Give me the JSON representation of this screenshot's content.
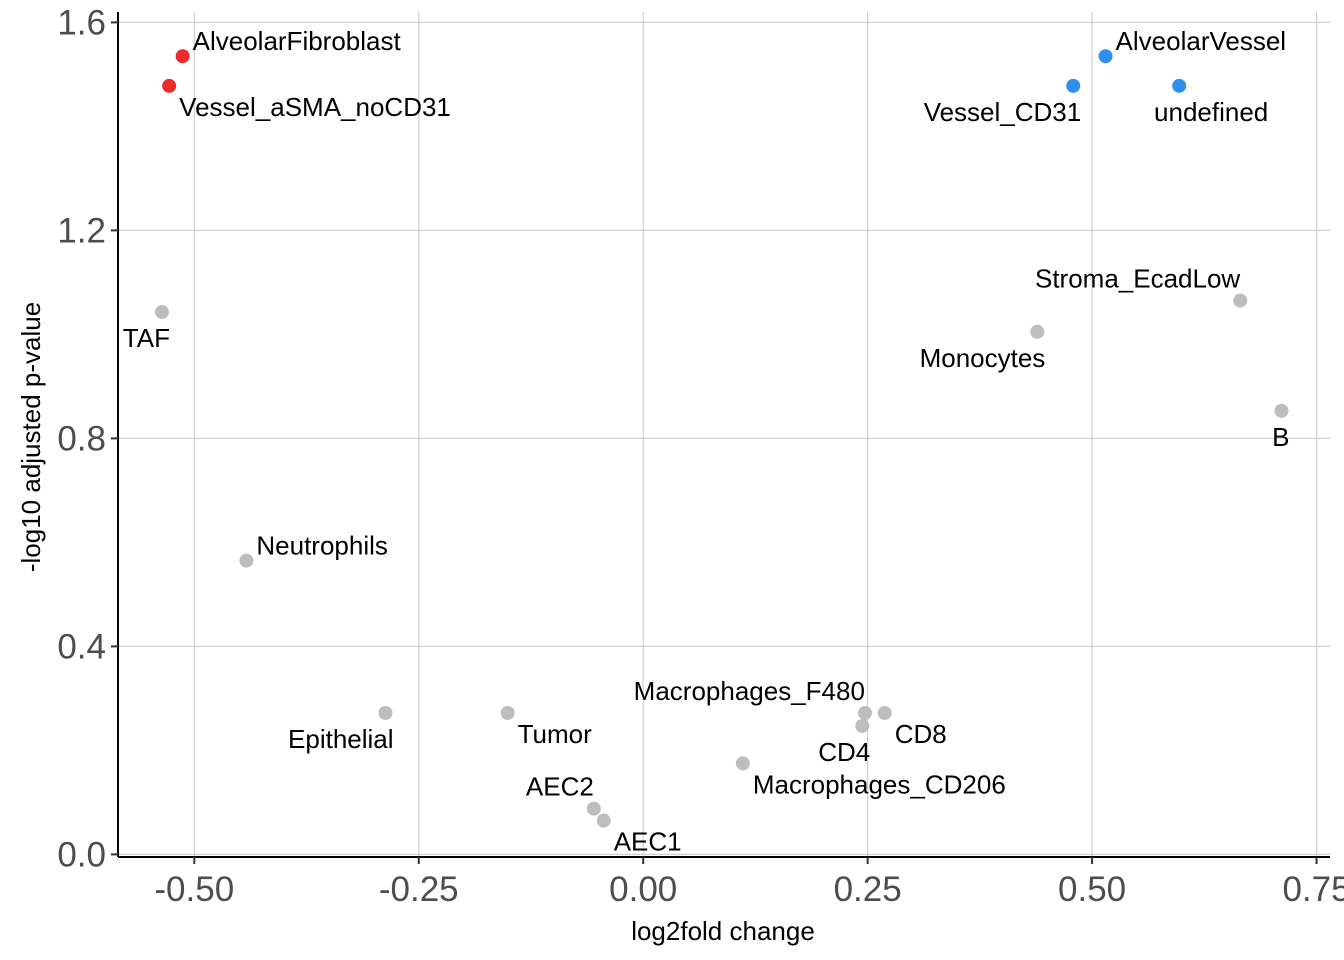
{
  "chart_data": {
    "type": "scatter",
    "xlabel": "log2fold change",
    "ylabel": "-log10 adjusted p-value",
    "xlim": [
      -0.585,
      0.765
    ],
    "ylim": [
      -0.005,
      1.62
    ],
    "x_ticks": [
      -0.5,
      -0.25,
      0.0,
      0.25,
      0.5,
      0.75
    ],
    "x_tick_labels": [
      "-0.50",
      "-0.25",
      "0.00",
      "0.25",
      "0.50",
      "0.75"
    ],
    "y_ticks": [
      0.0,
      0.4,
      0.8,
      1.2,
      1.6
    ],
    "y_tick_labels": [
      "0.0",
      "0.4",
      "0.8",
      "1.2",
      "1.6"
    ],
    "grid": true,
    "colors": {
      "down": "#ee2b2b",
      "up": "#2f8ff0",
      "ns": "#bdbdbd"
    },
    "points": [
      {
        "label": "AlveolarFibroblast",
        "x": -0.513,
        "y": 1.535,
        "group": "down",
        "label_pos": "above-right"
      },
      {
        "label": "Vessel_aSMA_noCD31",
        "x": -0.528,
        "y": 1.478,
        "group": "down",
        "label_pos": "below-right"
      },
      {
        "label": "AlveolarVessel",
        "x": 0.515,
        "y": 1.535,
        "group": "up",
        "label_pos": "above-right"
      },
      {
        "label": "Vessel_CD31",
        "x": 0.479,
        "y": 1.478,
        "group": "up",
        "label_pos": "below-left"
      },
      {
        "label": "undefined",
        "x": 0.597,
        "y": 1.478,
        "group": "up",
        "label_pos": "below-center"
      },
      {
        "label": "TAF",
        "x": -0.536,
        "y": 1.043,
        "group": "ns",
        "label_pos": "below-left"
      },
      {
        "label": "Stroma_EcadLow",
        "x": 0.665,
        "y": 1.065,
        "group": "ns",
        "label_pos": "above-left"
      },
      {
        "label": "Monocytes",
        "x": 0.439,
        "y": 1.005,
        "group": "ns",
        "label_pos": "below-left"
      },
      {
        "label": "B",
        "x": 0.711,
        "y": 0.853,
        "group": "ns",
        "label_pos": "below-left"
      },
      {
        "label": "Neutrophils",
        "x": -0.442,
        "y": 0.565,
        "group": "ns",
        "label_pos": "above-right"
      },
      {
        "label": "Epithelial",
        "x": -0.287,
        "y": 0.272,
        "group": "ns",
        "label_pos": "below-left"
      },
      {
        "label": "Tumor",
        "x": -0.151,
        "y": 0.272,
        "group": "ns",
        "label_pos": "below-right"
      },
      {
        "label": "Macrophages_F480",
        "x": 0.247,
        "y": 0.272,
        "group": "ns",
        "label_pos": "above-left"
      },
      {
        "label": "CD8",
        "x": 0.269,
        "y": 0.272,
        "group": "ns",
        "label_pos": "below-right"
      },
      {
        "label": "CD4",
        "x": 0.244,
        "y": 0.247,
        "group": "ns",
        "label_pos": "below-left"
      },
      {
        "label": "Macrophages_CD206",
        "x": 0.111,
        "y": 0.175,
        "group": "ns",
        "label_pos": "below-right"
      },
      {
        "label": "AEC2",
        "x": -0.055,
        "y": 0.088,
        "group": "ns",
        "label_pos": "above-left"
      },
      {
        "label": "AEC1",
        "x": -0.044,
        "y": 0.065,
        "group": "ns",
        "label_pos": "below-right"
      }
    ]
  }
}
